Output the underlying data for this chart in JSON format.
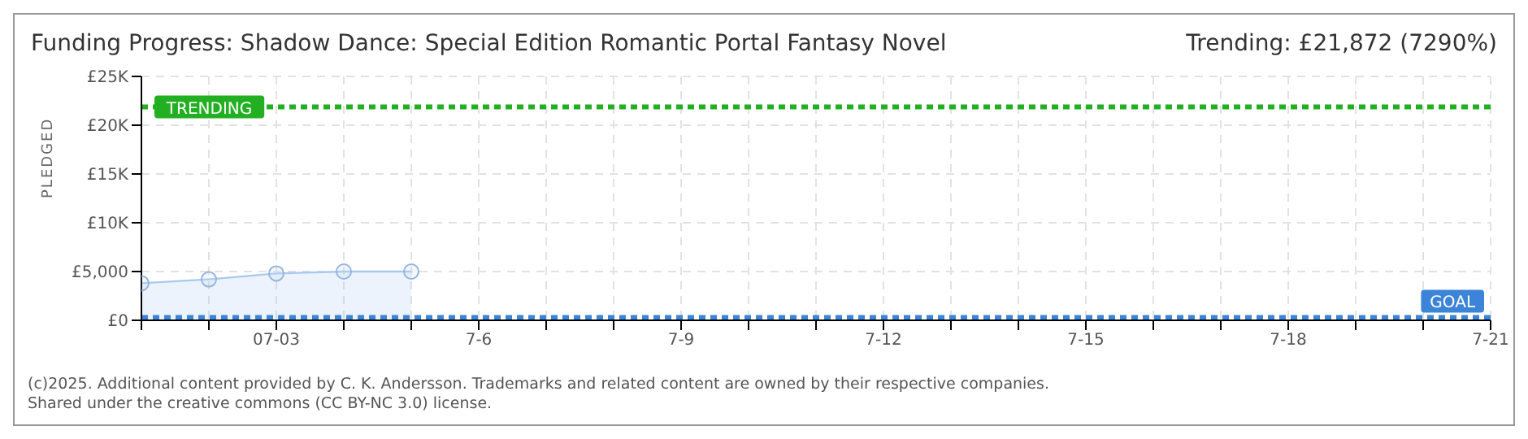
{
  "chart_data": {
    "type": "area",
    "title": "Funding Progress: Shadow Dance: Special Edition Romantic Portal Fantasy Novel",
    "subtitle": "Trending:  £21,872 (7290%)",
    "ylabel": "PLEDGED",
    "x": [
      "2025-07-01",
      "2025-07-02",
      "2025-07-03",
      "2025-07-04",
      "2025-07-05"
    ],
    "series": [
      {
        "color": "#a9c9f0",
        "values": [
          3800,
          4200,
          4800,
          5000,
          5000
        ]
      }
    ],
    "xlim": [
      "2025-07-01",
      "2025-07-21"
    ],
    "xticks": [
      {
        "value": "2025-07-01",
        "label": null
      },
      {
        "value": "2025-07-02",
        "label": null
      },
      {
        "value": "2025-07-03",
        "label": "07-03"
      },
      {
        "value": "2025-07-04",
        "label": null
      },
      {
        "value": "2025-07-05",
        "label": null
      },
      {
        "value": "2025-07-06",
        "label": "7-6"
      },
      {
        "value": "2025-07-07",
        "label": null
      },
      {
        "value": "2025-07-08",
        "label": null
      },
      {
        "value": "2025-07-09",
        "label": "7-9"
      },
      {
        "value": "2025-07-10",
        "label": null
      },
      {
        "value": "2025-07-11",
        "label": null
      },
      {
        "value": "2025-07-12",
        "label": "7-12"
      },
      {
        "value": "2025-07-13",
        "label": null
      },
      {
        "value": "2025-07-14",
        "label": null
      },
      {
        "value": "2025-07-15",
        "label": "7-15"
      },
      {
        "value": "2025-07-16",
        "label": null
      },
      {
        "value": "2025-07-17",
        "label": null
      },
      {
        "value": "2025-07-18",
        "label": "7-18"
      },
      {
        "value": "2025-07-19",
        "label": null
      },
      {
        "value": "2025-07-20",
        "label": null
      },
      {
        "value": "2025-07-21",
        "label": "7-21"
      }
    ],
    "ylim": [
      0,
      25000
    ],
    "yticks": [
      {
        "value": 0,
        "label": "£0"
      },
      {
        "value": 5000,
        "label": "£5,000"
      },
      {
        "value": 10000,
        "label": "£10K"
      },
      {
        "value": 15000,
        "label": "£15K"
      },
      {
        "value": 20000,
        "label": "£20K"
      },
      {
        "value": 25000,
        "label": "£25K"
      }
    ],
    "ref_lines": [
      {
        "axis": "y",
        "value": 21872,
        "label": "TRENDING",
        "color": "#22b022",
        "line_style": "dotted"
      },
      {
        "axis": "y",
        "value": 300,
        "label": "GOAL",
        "color": "#3c84d8",
        "line_style": "dotted"
      }
    ],
    "annotations": [
      "(c)2025. Additional content provided by C. K. Andersson. Trademarks and related content are owned by their respective companies.",
      "Shared under the creative commons (CC BY-NC 3.0) license."
    ],
    "grid": true,
    "marker": "circle"
  }
}
